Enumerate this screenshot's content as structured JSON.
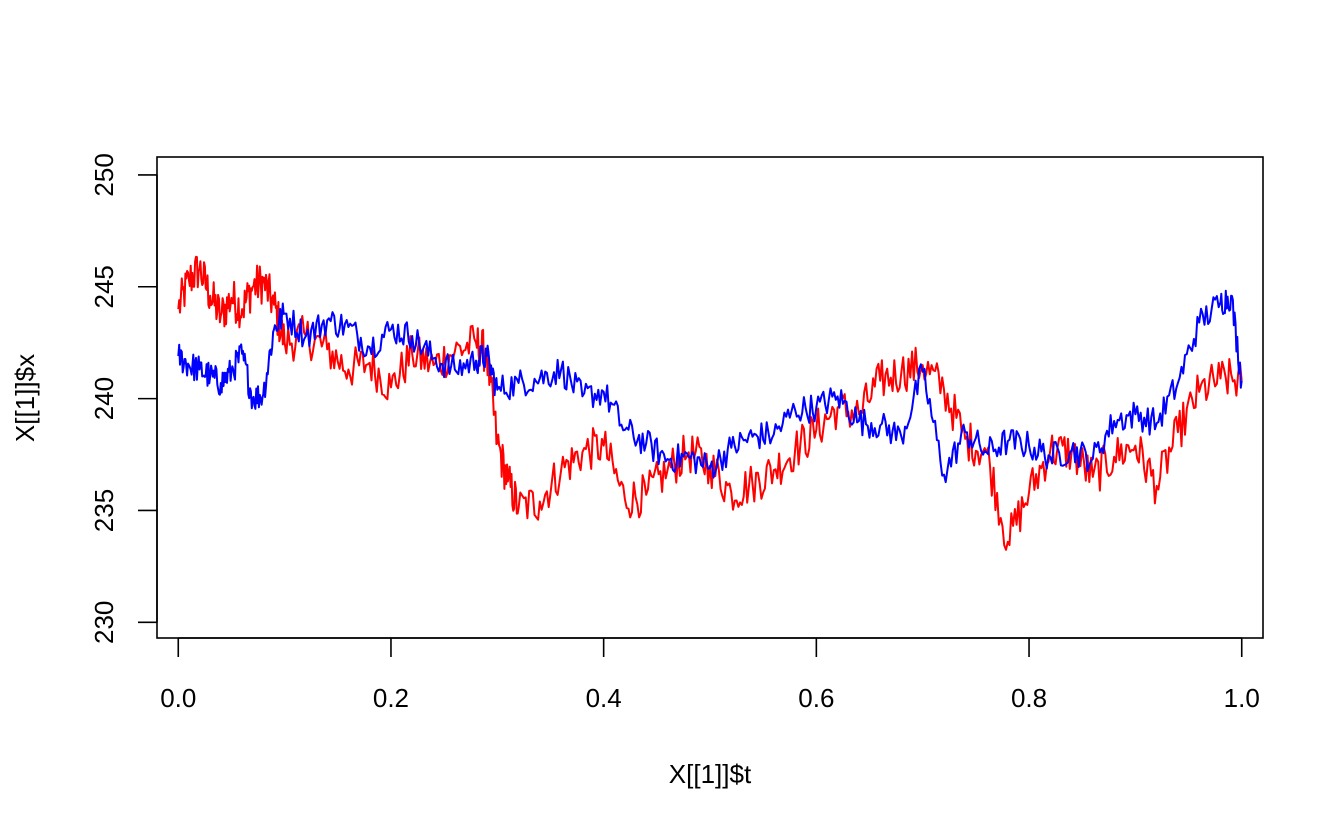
{
  "chart_data": {
    "type": "line",
    "title": "",
    "xlabel": "X[[1]]$t",
    "ylabel": "X[[1]]$x",
    "xlim": [
      -0.02,
      1.02
    ],
    "ylim": [
      229.3,
      250.8
    ],
    "xticks": [
      0.0,
      0.2,
      0.4,
      0.6,
      0.8,
      1.0
    ],
    "xtick_labels": [
      "0.0",
      "0.2",
      "0.4",
      "0.6",
      "0.8",
      "1.0"
    ],
    "yticks": [
      230,
      235,
      240,
      245,
      250
    ],
    "ytick_labels": [
      "230",
      "235",
      "240",
      "245",
      "250"
    ],
    "grid": false,
    "legend": "none",
    "series": [
      {
        "color": "#ff0000",
        "x": [
          0.0,
          0.01,
          0.02,
          0.03,
          0.04,
          0.05,
          0.06,
          0.07,
          0.08,
          0.09,
          0.1,
          0.12,
          0.14,
          0.16,
          0.18,
          0.2,
          0.22,
          0.24,
          0.26,
          0.28,
          0.29,
          0.3,
          0.31,
          0.32,
          0.34,
          0.36,
          0.38,
          0.4,
          0.42,
          0.44,
          0.46,
          0.48,
          0.5,
          0.52,
          0.54,
          0.56,
          0.58,
          0.6,
          0.62,
          0.64,
          0.66,
          0.68,
          0.7,
          0.72,
          0.74,
          0.76,
          0.78,
          0.8,
          0.82,
          0.84,
          0.86,
          0.88,
          0.9,
          0.92,
          0.94,
          0.96,
          0.98,
          1.0
        ],
        "y": [
          244.0,
          245.3,
          245.8,
          244.6,
          243.7,
          244.5,
          244.0,
          245.0,
          245.2,
          244.2,
          242.5,
          242.8,
          242.2,
          241.3,
          241.6,
          240.5,
          242.0,
          241.5,
          242.1,
          242.5,
          242.0,
          238.0,
          236.3,
          235.1,
          235.4,
          236.8,
          237.6,
          237.9,
          235.5,
          235.7,
          236.8,
          237.6,
          237.0,
          235.8,
          236.2,
          236.8,
          237.7,
          238.6,
          239.6,
          239.3,
          240.8,
          241.2,
          241.5,
          240.4,
          238.2,
          237.6,
          233.6,
          235.8,
          237.7,
          237.6,
          236.5,
          237.4,
          237.9,
          236.1,
          238.5,
          240.3,
          240.9,
          240.8
        ]
      },
      {
        "color": "#0000ff",
        "x": [
          0.0,
          0.01,
          0.02,
          0.03,
          0.04,
          0.05,
          0.06,
          0.07,
          0.08,
          0.09,
          0.1,
          0.12,
          0.14,
          0.16,
          0.18,
          0.2,
          0.22,
          0.24,
          0.26,
          0.28,
          0.29,
          0.3,
          0.32,
          0.34,
          0.36,
          0.38,
          0.4,
          0.42,
          0.44,
          0.46,
          0.48,
          0.5,
          0.52,
          0.54,
          0.56,
          0.58,
          0.6,
          0.62,
          0.64,
          0.66,
          0.68,
          0.7,
          0.72,
          0.74,
          0.76,
          0.78,
          0.8,
          0.82,
          0.84,
          0.86,
          0.88,
          0.9,
          0.92,
          0.94,
          0.96,
          0.98,
          0.99,
          1.0
        ],
        "y": [
          241.9,
          241.5,
          241.3,
          241.0,
          240.7,
          241.2,
          242.0,
          240.0,
          240.2,
          243.1,
          243.8,
          242.8,
          243.5,
          243.2,
          242.3,
          243.1,
          242.8,
          241.8,
          241.3,
          241.7,
          241.9,
          240.4,
          240.7,
          240.9,
          241.3,
          240.1,
          240.3,
          238.6,
          238.0,
          237.3,
          237.4,
          236.9,
          237.8,
          238.3,
          238.4,
          239.5,
          239.6,
          240.1,
          239.0,
          238.8,
          238.3,
          241.2,
          236.6,
          238.5,
          237.6,
          238.1,
          237.9,
          237.4,
          237.7,
          237.3,
          239.0,
          239.3,
          238.9,
          240.7,
          243.4,
          244.3,
          244.6,
          240.8
        ]
      }
    ]
  }
}
